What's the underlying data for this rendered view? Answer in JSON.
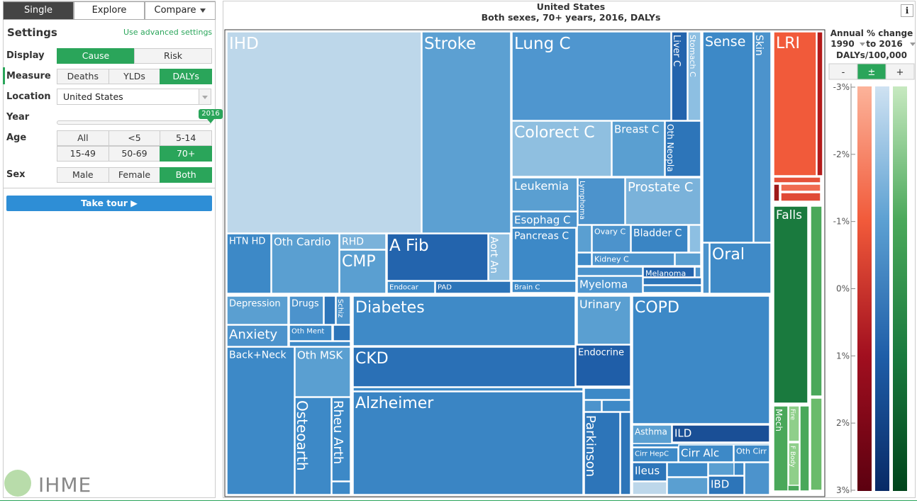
{
  "tabs": [
    "Single",
    "Explore",
    "Compare"
  ],
  "settings": {
    "title": "Settings",
    "advanced": "Use advanced settings",
    "display": {
      "label": "Display",
      "options": [
        "Cause",
        "Risk"
      ]
    },
    "measure": {
      "label": "Measure",
      "options": [
        "Deaths",
        "YLDs",
        "DALYs"
      ]
    },
    "location": {
      "label": "Location",
      "value": "United States"
    },
    "year": {
      "label": "Year",
      "value": "2016"
    },
    "age": {
      "label": "Age",
      "options": [
        "All",
        "<5",
        "5-14",
        "15-49",
        "50-69",
        "70+"
      ]
    },
    "sex": {
      "label": "Sex",
      "options": [
        "Male",
        "Female",
        "Both"
      ]
    },
    "tour": "Take tour ▶"
  },
  "logo": "IHME",
  "info": "i",
  "chart": {
    "title": "United States",
    "subtitle": "Both sexes, 70+ years, 2016, DALYs"
  },
  "cells": [
    "IHD",
    "Stroke",
    "Lung C",
    "Liver C",
    "Stomach C",
    "Colorect C",
    "Breast C",
    "Oth Neopla",
    "Leukemia",
    "Lymphoma",
    "Prostate C",
    "Esophag C",
    "Pancreas C",
    "Ovary C",
    "Bladder C",
    "Kidney C",
    "Melanoma",
    "Myeloma",
    "Brain C",
    "Sense",
    "Skin",
    "Oral",
    "HTN HD",
    "Oth Cardio",
    "RHD",
    "CMP",
    "A Fib",
    "Aort An",
    "Endocar",
    "PAD",
    "Depression",
    "Drugs",
    "Schiz",
    "Anxiety",
    "Oth Ment",
    "Diabetes",
    "Urinary",
    "COPD",
    "Back+Neck",
    "Oth MSK",
    "Osteoarth",
    "Rheu Arth",
    "CKD",
    "Endocrine",
    "Alzheimer",
    "Parkinson",
    "Asthma",
    "ILD",
    "Cirr HepC",
    "Cirr Alc",
    "Oth Cirr",
    "Ileus",
    "IBD",
    "LRI",
    "Falls",
    "Mech",
    "Fire",
    "F Body"
  ],
  "legend": {
    "title": "Annual % change",
    "from": "1990",
    "to": "to 2016",
    "unit": "DALYs/100,000",
    "buttons": [
      "-",
      "±",
      "+"
    ],
    "ticks": [
      "-3%",
      "-2%",
      "-1%",
      "0%",
      "1%",
      "2%",
      "3%"
    ]
  }
}
